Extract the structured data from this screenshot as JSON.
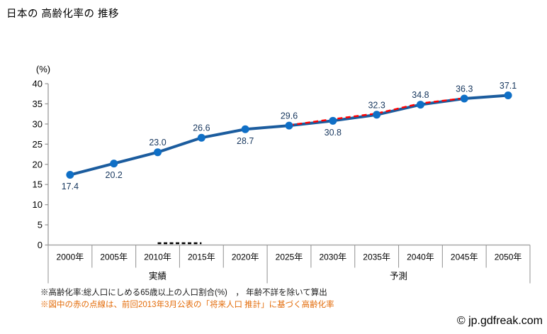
{
  "header": {
    "title": "日本の 高齢化率の 推移"
  },
  "chart_data": {
    "type": "line",
    "title": "日本の 高齢化率の 推移",
    "xlabel": "",
    "ylabel": "(%)",
    "ylim": [
      0,
      40
    ],
    "y_ticks": [
      0,
      5,
      10,
      15,
      20,
      25,
      30,
      35,
      40
    ],
    "grid": false,
    "legend": false,
    "categories": [
      "2000年",
      "2005年",
      "2010年",
      "2015年",
      "2020年",
      "2025年",
      "2030年",
      "2035年",
      "2040年",
      "2045年",
      "2050年"
    ],
    "axis_groups": [
      {
        "label": "実績",
        "from": 0,
        "to": 4
      },
      {
        "label": "予測",
        "from": 5,
        "to": 10
      }
    ],
    "series": [
      {
        "name": "高齢化率",
        "style": "solid",
        "color": "#1b5c9e",
        "marker_color": "#0f6fc6",
        "label_color": "#17375e",
        "values": [
          17.4,
          20.2,
          23.0,
          26.6,
          28.7,
          29.6,
          30.8,
          32.3,
          34.8,
          36.3,
          37.1
        ],
        "label_side": [
          "below",
          "below",
          "above",
          "above",
          "below",
          "above",
          "below",
          "above",
          "above",
          "above",
          "above"
        ]
      },
      {
        "name": "前回2013年3月公表の「将来人口推計」に基づく高齢化率",
        "style": "dashed",
        "color": "#ff0000",
        "start_index": 5,
        "values": [
          29.7,
          31.2,
          32.6,
          35.1,
          36.4
        ]
      }
    ],
    "zero_dash_segment": {
      "from_index": 2,
      "to_index": 3,
      "color": "#000000"
    },
    "axis_color": "#9a9a9a",
    "tick_label_color": "#000000"
  },
  "notes": [
    {
      "text": "※高齢化率:総人口にしめる65歳以上の人口割合(%)　， 年齢不詳を除いて算出",
      "color": "#1a1a1a"
    },
    {
      "text": "※図中の赤の点線は、前回2013年3月公表の「将来人口 推計」に基づく高齢化率",
      "color": "#e36c0a"
    }
  ],
  "watermark": {
    "text": "© jp.gdfreak.com"
  }
}
